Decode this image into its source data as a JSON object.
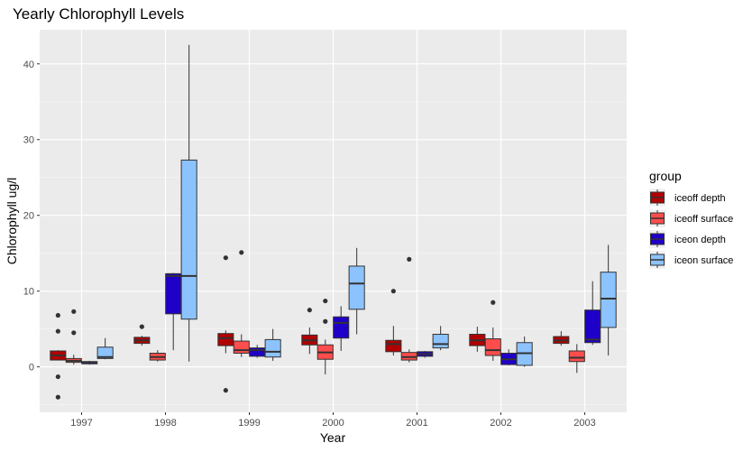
{
  "chart_data": {
    "type": "boxplot",
    "title": "Yearly Chlorophyll Levels",
    "xlabel": "Year",
    "ylabel": "Chlorophyll ug/l",
    "categories": [
      "1997",
      "1998",
      "1999",
      "2000",
      "2001",
      "2002",
      "2003"
    ],
    "ylim": [
      -6,
      44.5
    ],
    "yticks": [
      0,
      10,
      20,
      30,
      40
    ],
    "grid": true,
    "legend": {
      "title": "group",
      "placement": "right"
    },
    "series": [
      {
        "name": "iceoff depth",
        "color": "#B20000",
        "boxes": [
          {
            "low": 0.9,
            "q1": 0.9,
            "median": 1.5,
            "q3": 2.1,
            "high": 2.2,
            "outliers": [
              6.8,
              4.7,
              -1.3,
              -4.0
            ]
          },
          {
            "low": 2.8,
            "q1": 3.1,
            "median": 3.5,
            "q3": 3.9,
            "high": 4.1,
            "outliers": [
              5.3
            ]
          },
          {
            "low": 1.8,
            "q1": 2.8,
            "median": 3.8,
            "q3": 4.4,
            "high": 4.8,
            "outliers": [
              14.4,
              -3.1
            ]
          },
          {
            "low": 1.7,
            "q1": 2.9,
            "median": 3.5,
            "q3": 4.2,
            "high": 5.2,
            "outliers": [
              7.5
            ]
          },
          {
            "low": 1.5,
            "q1": 2.0,
            "median": 3.0,
            "q3": 3.5,
            "high": 5.4,
            "outliers": [
              10.0
            ]
          },
          {
            "low": 2.0,
            "q1": 2.8,
            "median": 3.5,
            "q3": 4.3,
            "high": 5.3,
            "outliers": []
          },
          {
            "low": 2.8,
            "q1": 3.1,
            "median": 3.5,
            "q3": 4.0,
            "high": 4.7,
            "outliers": []
          }
        ]
      },
      {
        "name": "iceoff surface",
        "color": "#FF4D4D",
        "boxes": [
          {
            "low": 0.3,
            "q1": 0.6,
            "median": 0.8,
            "q3": 1.1,
            "high": 1.6,
            "outliers": [
              7.3,
              4.5
            ]
          },
          {
            "low": 0.7,
            "q1": 0.9,
            "median": 1.3,
            "q3": 1.8,
            "high": 2.2,
            "outliers": []
          },
          {
            "low": 1.3,
            "q1": 1.8,
            "median": 2.2,
            "q3": 3.4,
            "high": 4.3,
            "outliers": [
              15.1
            ]
          },
          {
            "low": -1.0,
            "q1": 1.0,
            "median": 1.9,
            "q3": 2.9,
            "high": 3.6,
            "outliers": [
              8.7,
              6.0
            ]
          },
          {
            "low": 0.6,
            "q1": 0.9,
            "median": 1.3,
            "q3": 1.9,
            "high": 2.3,
            "outliers": [
              14.2
            ]
          },
          {
            "low": 0.8,
            "q1": 1.5,
            "median": 2.2,
            "q3": 3.7,
            "high": 5.2,
            "outliers": [
              8.5
            ]
          },
          {
            "low": -0.8,
            "q1": 0.7,
            "median": 1.2,
            "q3": 2.1,
            "high": 3.0,
            "outliers": []
          }
        ]
      },
      {
        "name": "iceon depth",
        "color": "#1E00C8",
        "boxes": [
          {
            "low": 0.3,
            "q1": 0.4,
            "median": 0.6,
            "q3": 0.7,
            "high": 0.8,
            "outliers": []
          },
          {
            "low": 2.2,
            "q1": 7.0,
            "median": 12.0,
            "q3": 12.3,
            "high": 12.4,
            "outliers": []
          },
          {
            "low": 1.2,
            "q1": 1.4,
            "median": 2.2,
            "q3": 2.5,
            "high": 2.9,
            "outliers": []
          },
          {
            "low": 2.1,
            "q1": 3.8,
            "median": 5.8,
            "q3": 6.6,
            "high": 8.0,
            "outliers": []
          },
          {
            "low": 1.2,
            "q1": 1.4,
            "median": 1.7,
            "q3": 2.0,
            "high": 2.1,
            "outliers": []
          },
          {
            "low": 0.2,
            "q1": 0.3,
            "median": 1.0,
            "q3": 1.8,
            "high": 2.3,
            "outliers": []
          },
          {
            "low": 2.9,
            "q1": 3.2,
            "median": 3.6,
            "q3": 7.5,
            "high": 11.3,
            "outliers": []
          }
        ]
      },
      {
        "name": "iceon surface",
        "color": "#8CC3FF",
        "boxes": [
          {
            "low": 1.0,
            "q1": 1.1,
            "median": 1.3,
            "q3": 2.6,
            "high": 3.8,
            "outliers": []
          },
          {
            "low": 0.7,
            "q1": 6.3,
            "median": 12.0,
            "q3": 27.3,
            "high": 42.5,
            "outliers": []
          },
          {
            "low": 0.8,
            "q1": 1.3,
            "median": 2.0,
            "q3": 3.6,
            "high": 5.0,
            "outliers": []
          },
          {
            "low": 4.3,
            "q1": 7.6,
            "median": 11.0,
            "q3": 13.3,
            "high": 15.7,
            "outliers": []
          },
          {
            "low": 2.2,
            "q1": 2.5,
            "median": 3.0,
            "q3": 4.3,
            "high": 5.4,
            "outliers": []
          },
          {
            "low": 0.0,
            "q1": 0.2,
            "median": 1.8,
            "q3": 3.2,
            "high": 4.0,
            "outliers": []
          },
          {
            "low": 1.5,
            "q1": 5.2,
            "median": 9.0,
            "q3": 12.5,
            "high": 16.1,
            "outliers": []
          }
        ]
      }
    ]
  }
}
